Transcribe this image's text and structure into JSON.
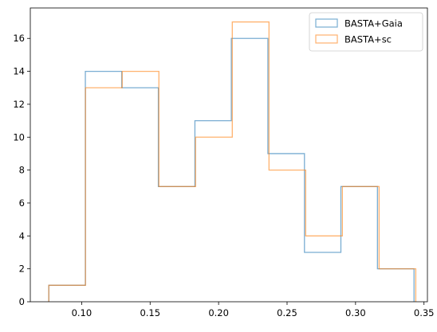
{
  "chart_data": {
    "type": "histogram",
    "xlim": [
      0.0625,
      0.3525
    ],
    "ylim": [
      0,
      17.85
    ],
    "x_ticks": [
      {
        "value": 0.1,
        "label": "0.10"
      },
      {
        "value": 0.15,
        "label": "0.15"
      },
      {
        "value": 0.2,
        "label": "0.20"
      },
      {
        "value": 0.25,
        "label": "0.25"
      },
      {
        "value": 0.3,
        "label": "0.30"
      },
      {
        "value": 0.35,
        "label": "0.35"
      }
    ],
    "y_ticks": [
      {
        "value": 0,
        "label": "0"
      },
      {
        "value": 2,
        "label": "2"
      },
      {
        "value": 4,
        "label": "4"
      },
      {
        "value": 6,
        "label": "6"
      },
      {
        "value": 8,
        "label": "8"
      },
      {
        "value": 10,
        "label": "10"
      },
      {
        "value": 12,
        "label": "12"
      },
      {
        "value": 14,
        "label": "14"
      },
      {
        "value": 16,
        "label": "16"
      }
    ],
    "grid": false,
    "legend_position": "top-right",
    "series": [
      {
        "name": "BASTA+Gaia",
        "color": "#1f77b4",
        "bin_edges": [
          0.076,
          0.1027,
          0.1293,
          0.156,
          0.1827,
          0.2093,
          0.236,
          0.2627,
          0.2893,
          0.316,
          0.3427
        ],
        "counts": [
          1,
          14,
          13,
          7,
          11,
          16,
          9,
          3,
          7,
          2
        ]
      },
      {
        "name": "BASTA+sc",
        "color": "#ff7f0e",
        "bin_edges": [
          0.076,
          0.1028,
          0.1296,
          0.1564,
          0.1832,
          0.21,
          0.2368,
          0.2636,
          0.2904,
          0.3172,
          0.344
        ],
        "counts": [
          1,
          13,
          14,
          7,
          10,
          17,
          8,
          4,
          7,
          2
        ]
      }
    ]
  }
}
